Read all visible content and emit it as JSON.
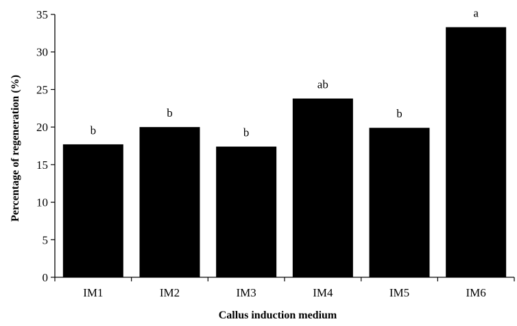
{
  "chart_data": {
    "type": "bar",
    "title": "",
    "xlabel": "Callus induction medium",
    "ylabel": "Percentage of regeneration (%)",
    "categories": [
      "IM1",
      "IM2",
      "IM3",
      "IM4",
      "IM5",
      "IM6"
    ],
    "values": [
      17.7,
      20.0,
      17.4,
      23.8,
      19.9,
      33.3
    ],
    "significance_letters": [
      "b",
      "b",
      "b",
      "ab",
      "b",
      "a"
    ],
    "ylim": [
      0,
      35
    ],
    "yticks": [
      0,
      5,
      10,
      15,
      20,
      25,
      30,
      35
    ],
    "grid": false,
    "legend": "none",
    "bar_color": "#000000"
  }
}
